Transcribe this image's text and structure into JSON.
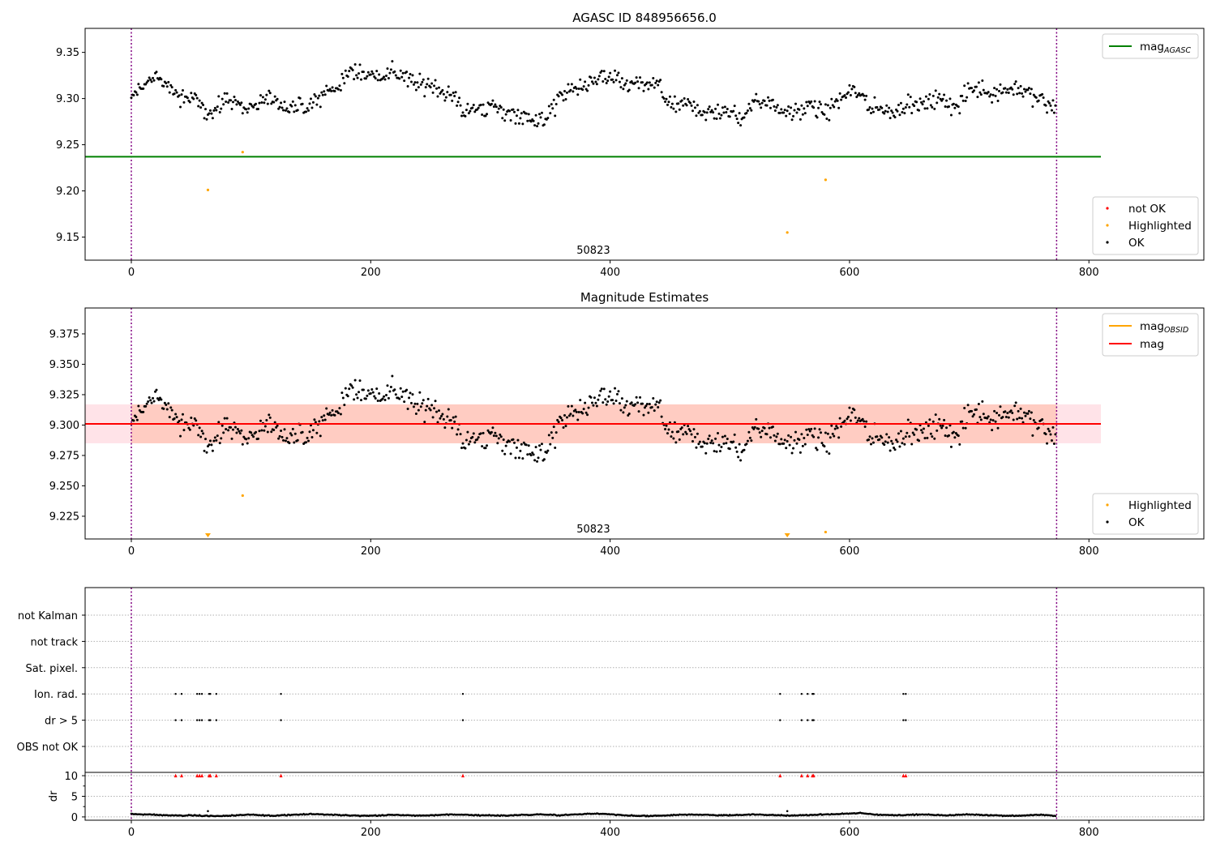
{
  "chart_data": [
    {
      "type": "scatter",
      "title": "AGASC ID 848956656.0",
      "xlim": [
        -38.6,
        896
      ],
      "ylim": [
        9.125,
        9.376
      ],
      "xticks": [
        0,
        200,
        400,
        600,
        800
      ],
      "yticks": [
        9.15,
        9.2,
        9.25,
        9.3,
        9.35
      ],
      "ytick_labels": [
        "9.15",
        "9.20",
        "9.25",
        "9.30",
        "9.35"
      ],
      "mag_agasc": 9.237,
      "mag_agasc_xrange": [
        -38.6,
        810
      ],
      "legend_lines": [
        {
          "label": "mag",
          "sub": "AGASC",
          "color": "#008000"
        }
      ],
      "legend_points": [
        {
          "label": "not OK",
          "color": "#ff0000"
        },
        {
          "label": "Highlighted",
          "color": "#ffa500"
        },
        {
          "label": "OK",
          "color": "#000000"
        }
      ],
      "obsid_label": "50823",
      "obsid_x": 386,
      "vlines": [
        0,
        773
      ]
    },
    {
      "type": "scatter",
      "title": "Magnitude Estimates",
      "xlim": [
        -38.6,
        896
      ],
      "ylim": [
        9.2063,
        9.3963
      ],
      "xticks": [
        0,
        200,
        400,
        600,
        800
      ],
      "yticks": [
        9.225,
        9.25,
        9.275,
        9.3,
        9.325,
        9.35,
        9.375
      ],
      "ytick_labels": [
        "9.225",
        "9.250",
        "9.275",
        "9.300",
        "9.325",
        "9.350",
        "9.375"
      ],
      "mag": 9.301,
      "mag_band": [
        9.285,
        9.317
      ],
      "legend_lines": [
        {
          "label": "mag",
          "sub": "OBSID",
          "color": "#ffa500"
        },
        {
          "label": "mag",
          "sub": "",
          "color": "#ff0000"
        }
      ],
      "legend_points": [
        {
          "label": "Highlighted",
          "color": "#ffa500"
        },
        {
          "label": "OK",
          "color": "#000000"
        }
      ],
      "obsid_label": "50823",
      "obsid_x": 386,
      "vlines": [
        0,
        773
      ]
    },
    {
      "type": "scatter",
      "title": "",
      "flag_rows": [
        "not Kalman",
        "not track",
        "Sat. pixel.",
        "Ion. rad.",
        "dr > 5",
        "OBS not OK"
      ],
      "flag_points": {
        "Ion. rad.": [
          37,
          42,
          55,
          57,
          59,
          65,
          66,
          71,
          125,
          277,
          542,
          560,
          565,
          569,
          570,
          645,
          647
        ],
        "dr > 5": [
          37,
          42,
          55,
          57,
          59,
          65,
          66,
          71,
          125,
          277,
          542,
          560,
          565,
          569,
          570,
          645,
          647
        ]
      },
      "dr_ylabel": "dr",
      "dr_ylim": [
        -0.8,
        10.8
      ],
      "dr_yticks": [
        0,
        5,
        10
      ],
      "dr_clipped_at": 10,
      "dr_outliers": [
        [
          64,
          1.4
        ],
        [
          548,
          1.4
        ]
      ],
      "vlines": [
        0,
        773
      ]
    }
  ],
  "series": {
    "n_points": 773,
    "trend_x_step": 10,
    "mag_trend": [
      9.3,
      9.315,
      9.325,
      9.315,
      9.3,
      9.3,
      9.29,
      9.285,
      9.3,
      9.295,
      9.29,
      9.295,
      9.3,
      9.29,
      9.29,
      9.29,
      9.305,
      9.31,
      9.325,
      9.33,
      9.325,
      9.325,
      9.33,
      9.32,
      9.315,
      9.315,
      9.31,
      9.3,
      9.285,
      9.29,
      9.29,
      9.285,
      9.285,
      9.28,
      9.275,
      9.285,
      9.305,
      9.31,
      9.315,
      9.32,
      9.325,
      9.315,
      9.315,
      9.315,
      9.315,
      9.29,
      9.295,
      9.29,
      9.285,
      9.285,
      9.285,
      9.28,
      9.295,
      9.3,
      9.29,
      9.285,
      9.29,
      9.29,
      9.285,
      9.295,
      9.31,
      9.305,
      9.29,
      9.285,
      9.29,
      9.295,
      9.29,
      9.3,
      9.295,
      9.29,
      9.31,
      9.31,
      9.305,
      9.31,
      9.31,
      9.305,
      9.3,
      9.29
    ],
    "mag_scatter": 0.012,
    "dr_trend": [
      0.7,
      0.6,
      0.5,
      0.4,
      0.3,
      0.4,
      0.3,
      0.2,
      0.3,
      0.4,
      0.5,
      0.4,
      0.3,
      0.5,
      0.6,
      0.7,
      0.6,
      0.5,
      0.4,
      0.3,
      0.3,
      0.4,
      0.5,
      0.4,
      0.3,
      0.4,
      0.5,
      0.6,
      0.5,
      0.4,
      0.4,
      0.3,
      0.4,
      0.5,
      0.6,
      0.5,
      0.4,
      0.6,
      0.7,
      0.8,
      0.6,
      0.4,
      0.3,
      0.2,
      0.3,
      0.4,
      0.5,
      0.6,
      0.5,
      0.4,
      0.4,
      0.5,
      0.6,
      0.5,
      0.4,
      0.3,
      0.4,
      0.5,
      0.6,
      0.7,
      0.8,
      0.9,
      0.6,
      0.5,
      0.4,
      0.5,
      0.6,
      0.5,
      0.4,
      0.5,
      0.6,
      0.5,
      0.4,
      0.3,
      0.3,
      0.4,
      0.5,
      0.3
    ],
    "highlighted": [
      [
        64,
        9.201
      ],
      [
        93,
        9.242
      ],
      [
        548,
        9.155
      ],
      [
        580,
        9.212
      ]
    ]
  }
}
